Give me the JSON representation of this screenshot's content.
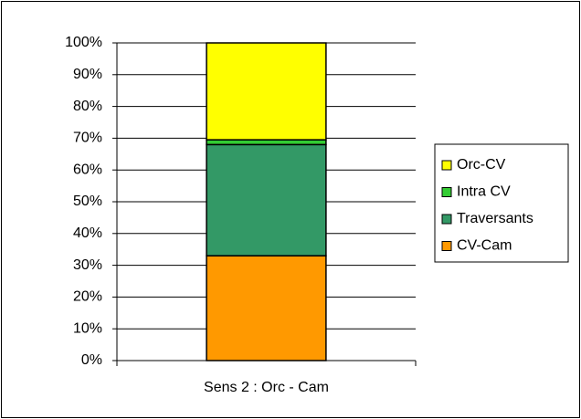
{
  "chart_data": {
    "type": "stacked_bar",
    "categories": [
      "Sens 2 : Orc - Cam"
    ],
    "series": [
      {
        "name": "CV-Cam",
        "color": "#ff9900",
        "values": [
          33
        ]
      },
      {
        "name": "Traversants",
        "color": "#339966",
        "values": [
          35
        ]
      },
      {
        "name": "Intra CV",
        "color": "#33cc33",
        "values": [
          1.5
        ]
      },
      {
        "name": "Orc-CV",
        "color": "#ffff00",
        "values": [
          30.5
        ]
      }
    ],
    "ylim": [
      0,
      100
    ],
    "yticks": [
      {
        "value": 0,
        "label": "0%"
      },
      {
        "value": 10,
        "label": "10%"
      },
      {
        "value": 20,
        "label": "20%"
      },
      {
        "value": 30,
        "label": "30%"
      },
      {
        "value": 40,
        "label": "40%"
      },
      {
        "value": 50,
        "label": "50%"
      },
      {
        "value": 60,
        "label": "60%"
      },
      {
        "value": 70,
        "label": "70%"
      },
      {
        "value": 80,
        "label": "80%"
      },
      {
        "value": 90,
        "label": "90%"
      },
      {
        "value": 100,
        "label": "100%"
      }
    ],
    "grid": true,
    "legend": "right"
  }
}
